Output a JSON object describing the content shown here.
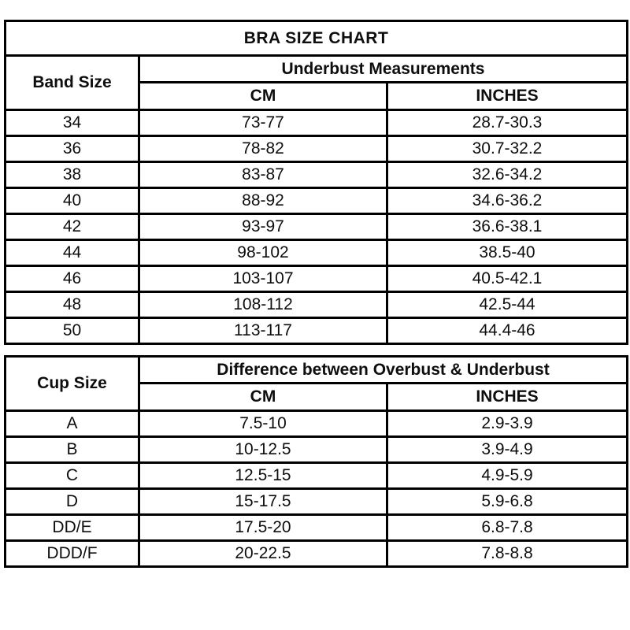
{
  "colors": {
    "page_bg": "#FFFFFF",
    "header_bg": "#FBF6DC",
    "row_bg": "#FFFFFF",
    "border": "#000000",
    "text": "#0E0E0E"
  },
  "chart_data": [
    {
      "type": "table",
      "title": "BRA SIZE CHART",
      "col1_header": "Band Size",
      "group_header": "Underbust Measurements",
      "sub_headers": [
        "CM",
        "INCHES"
      ],
      "rows": [
        [
          "34",
          "73-77",
          "28.7-30.3"
        ],
        [
          "36",
          "78-82",
          "30.7-32.2"
        ],
        [
          "38",
          "83-87",
          "32.6-34.2"
        ],
        [
          "40",
          "88-92",
          "34.6-36.2"
        ],
        [
          "42",
          "93-97",
          "36.6-38.1"
        ],
        [
          "44",
          "98-102",
          "38.5-40"
        ],
        [
          "46",
          "103-107",
          "40.5-42.1"
        ],
        [
          "48",
          "108-112",
          "42.5-44"
        ],
        [
          "50",
          "113-117",
          "44.4-46"
        ]
      ]
    },
    {
      "type": "table",
      "col1_header": "Cup Size",
      "group_header": "Difference between Overbust & Underbust",
      "sub_headers": [
        "CM",
        "INCHES"
      ],
      "rows": [
        [
          "A",
          "7.5-10",
          "2.9-3.9"
        ],
        [
          "B",
          "10-12.5",
          "3.9-4.9"
        ],
        [
          "C",
          "12.5-15",
          "4.9-5.9"
        ],
        [
          "D",
          "15-17.5",
          "5.9-6.8"
        ],
        [
          "DD/E",
          "17.5-20",
          "6.8-7.8"
        ],
        [
          "DDD/F",
          "20-22.5",
          "7.8-8.8"
        ]
      ]
    }
  ]
}
